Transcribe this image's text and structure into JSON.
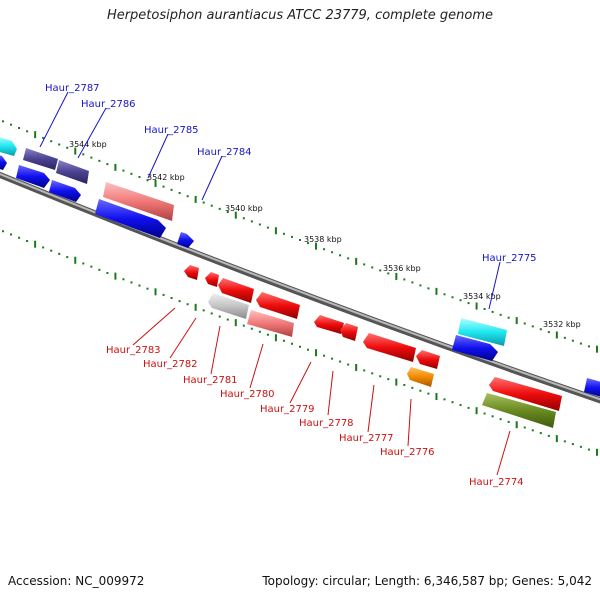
{
  "title": "Herpetosiphon aurantiacus ATCC 23779, complete genome",
  "footer": {
    "accession": "Accession: NC_009972",
    "topology": "Topology: circular; Length: 6,346,587 bp; Genes: 5,042"
  },
  "colors": {
    "backbone": "#888888",
    "forward_label": "#1515c8",
    "reverse_label": "#cc1010",
    "tick": "#1a7a1a"
  },
  "kbp_labels": [
    "3544 kbp",
    "3542 kbp",
    "3540 kbp",
    "3538 kbp",
    "3536 kbp",
    "3534 kbp",
    "3532 kbp"
  ],
  "genes_top": [
    "Haur_2787",
    "Haur_2786",
    "Haur_2785",
    "Haur_2784",
    "Haur_2775"
  ],
  "genes_bottom": [
    "Haur_2783",
    "Haur_2782",
    "Haur_2781",
    "Haur_2780",
    "Haur_2779",
    "Haur_2778",
    "Haur_2777",
    "Haur_2776",
    "Haur_2774"
  ]
}
